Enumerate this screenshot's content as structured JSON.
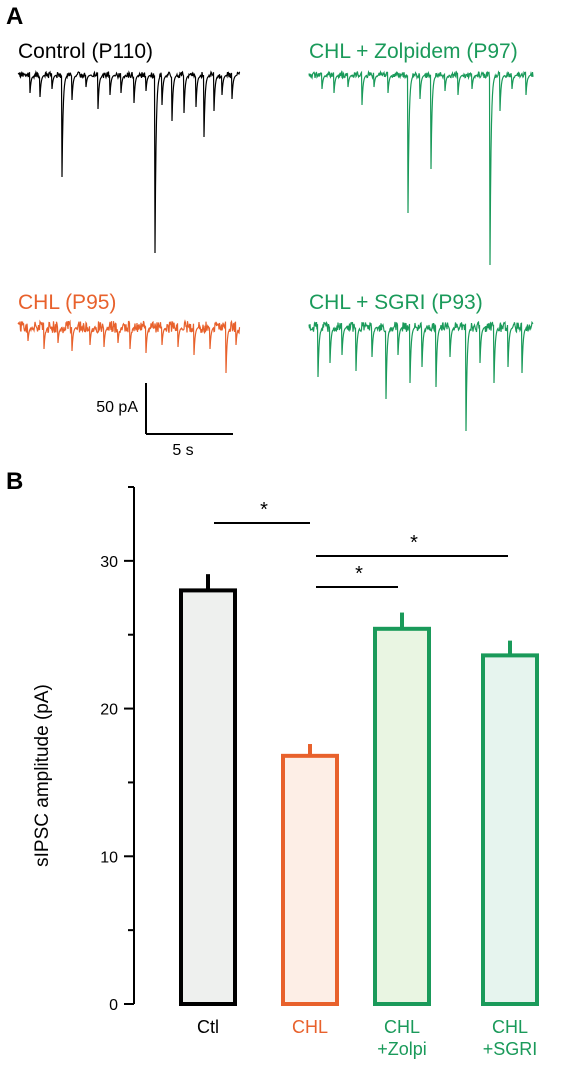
{
  "panel_a": {
    "letter": "A",
    "traces": [
      {
        "title": "Control (P110)",
        "color": "#000000"
      },
      {
        "title": "CHL + Zolpidem  (P97)",
        "color": "#1a9a5a"
      },
      {
        "title": "CHL (P95)",
        "color": "#e8612c"
      },
      {
        "title": "CHL + SGRI (P93)",
        "color": "#1a9a5a"
      }
    ],
    "scale_bar": {
      "amplitude_label": "50 pA",
      "time_label": "5 s"
    }
  },
  "panel_b": {
    "letter": "B"
  },
  "chart_data": {
    "type": "bar",
    "categories": [
      "Ctl",
      "CHL",
      "CHL\n+Zolpi",
      "CHL\n+SGRI"
    ],
    "category_lines": [
      [
        "Ctl"
      ],
      [
        "CHL"
      ],
      [
        "CHL",
        "+Zolpi"
      ],
      [
        "CHL",
        "+SGRI"
      ]
    ],
    "values": [
      28.0,
      16.8,
      25.4,
      23.6
    ],
    "errors": [
      1.1,
      0.8,
      1.1,
      1.0
    ],
    "edge_colors": [
      "#000000",
      "#e8612c",
      "#1a9a5a",
      "#1a9a5a"
    ],
    "fill_colors": [
      "#eef0ee",
      "#fdeee6",
      "#e9f5e2",
      "#e6f4ee"
    ],
    "label_colors": [
      "#000000",
      "#e8612c",
      "#1a9a5a",
      "#1a9a5a"
    ],
    "ylabel": "sIPSC amplitude (pA)",
    "ylim": [
      0,
      35
    ],
    "yticks": [
      0,
      10,
      20,
      30
    ],
    "significance": [
      {
        "from": 0,
        "to": 1,
        "label": "*"
      },
      {
        "from": 1,
        "to": 2,
        "label": "*"
      },
      {
        "from": 1,
        "to": 3,
        "label": "*"
      }
    ]
  }
}
